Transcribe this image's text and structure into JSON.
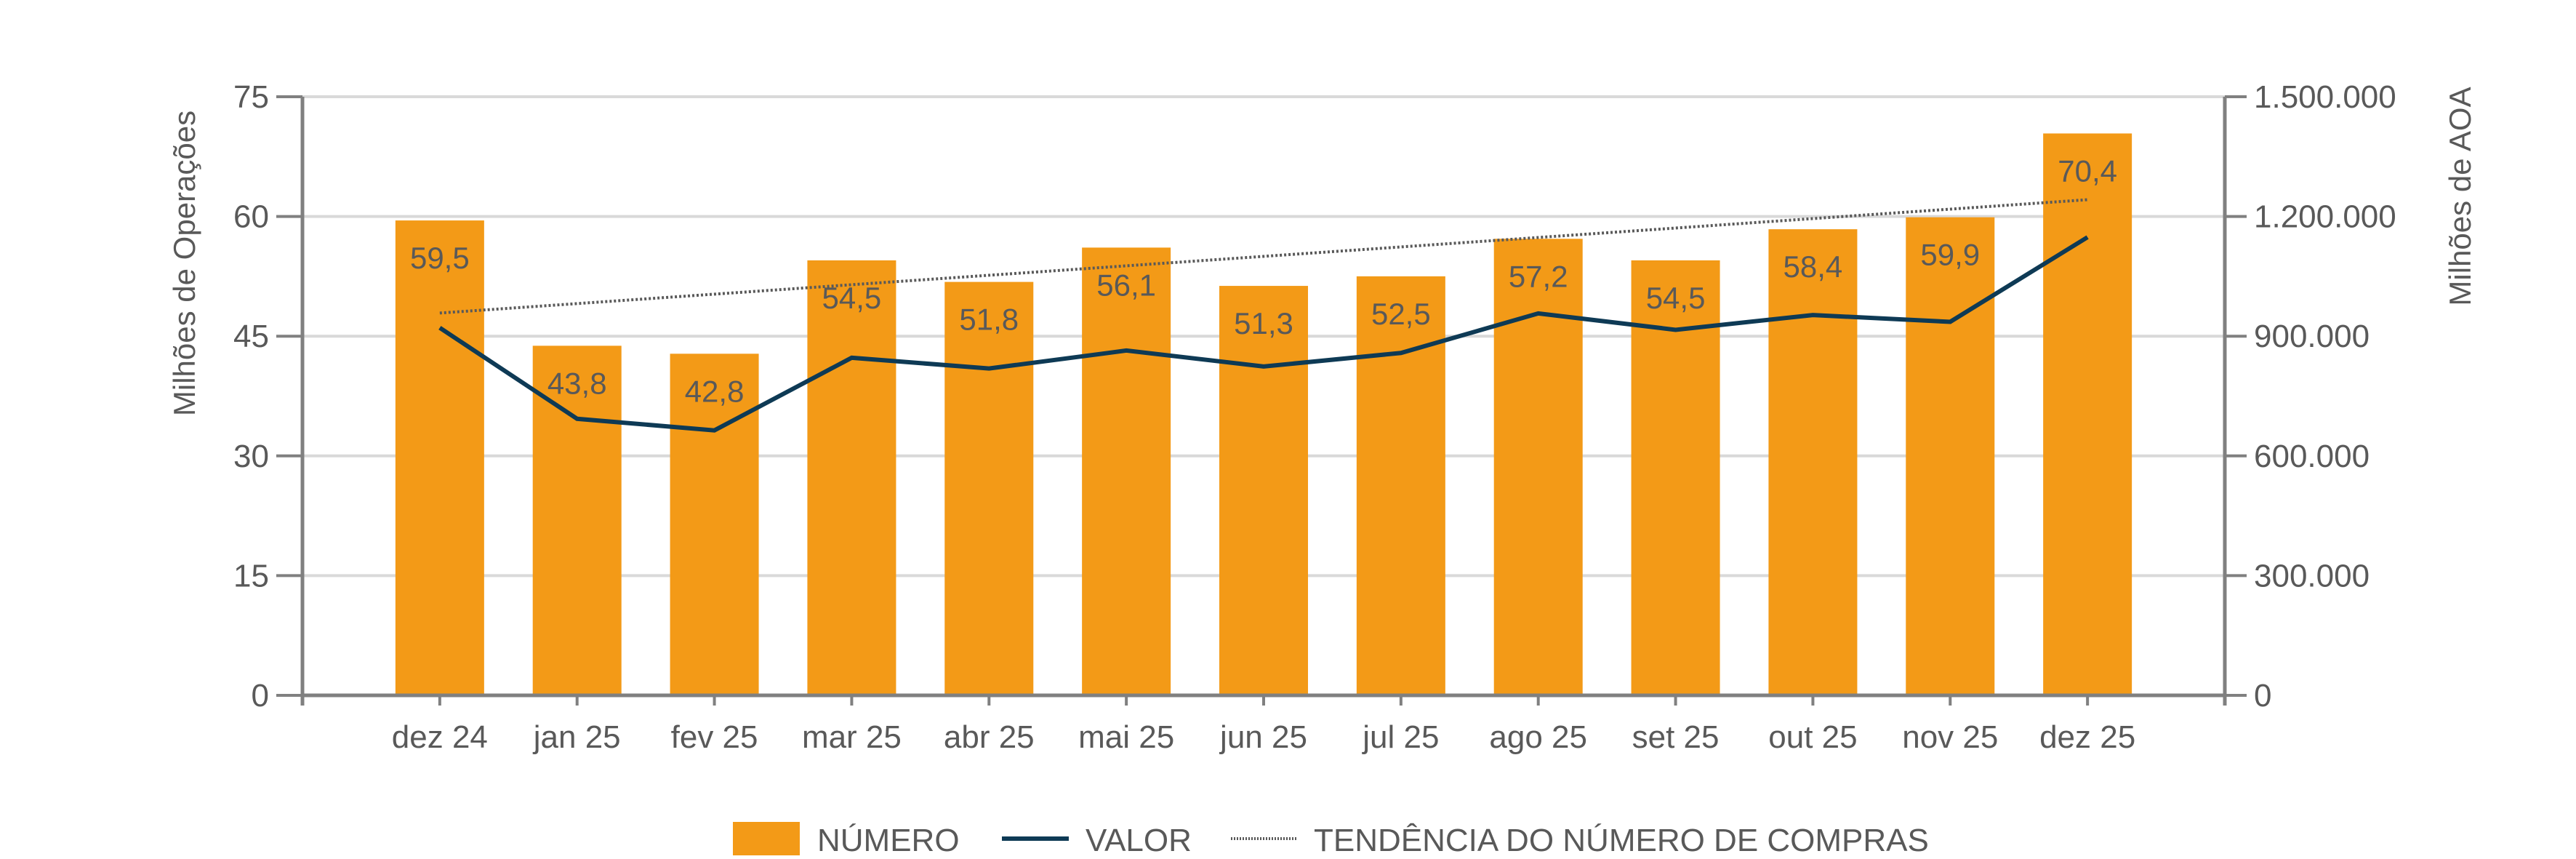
{
  "chart_data": {
    "type": "bar",
    "title": "",
    "categories": [
      "dez 24",
      "jan 25",
      "fev 25",
      "mar 25",
      "abr 25",
      "mai 25",
      "jun 25",
      "jul 25",
      "ago 25",
      "set 25",
      "out 25",
      "nov 25",
      "dez 25"
    ],
    "series": [
      {
        "name": "NÚMERO",
        "type": "bar",
        "axis": "left",
        "color": "#F39A17",
        "values": [
          59.5,
          43.8,
          42.8,
          54.5,
          51.8,
          56.1,
          51.3,
          52.5,
          57.2,
          54.5,
          58.4,
          59.9,
          70.4
        ],
        "labels": [
          "59,5",
          "43,8",
          "42,8",
          "54,5",
          "51,8",
          "56,1",
          "51,3",
          "52,5",
          "57,2",
          "54,5",
          "58,4",
          "59,9",
          "70,4"
        ]
      },
      {
        "name": "VALOR",
        "type": "line",
        "axis": "right",
        "color": "#0E3A55",
        "values": [
          921000,
          693000,
          664000,
          846000,
          819000,
          864000,
          824000,
          858000,
          957000,
          916000,
          953000,
          936000,
          1148000
        ]
      },
      {
        "name": "TENDÊNCIA DO NÚMERO DE COMPRAS",
        "type": "trendline",
        "axis": "left",
        "style": "dotted",
        "color": "#595959",
        "start_value": 47.9,
        "end_value": 62.1
      }
    ],
    "xlabel": "",
    "ylabel": "Milhões de Operações",
    "y2label": "Milhões de AOA",
    "ylim": [
      0,
      75
    ],
    "y2lim": [
      0,
      1500000
    ],
    "yticks": [
      "0",
      "15",
      "30",
      "45",
      "60",
      "75"
    ],
    "y2ticks": [
      "0",
      "300.000",
      "600.000",
      "900.000",
      "1.200.000",
      "1.500.000"
    ],
    "grid": true,
    "legend_position": "bottom"
  },
  "legend": {
    "items": [
      {
        "label": "NÚMERO",
        "symbol": "bar-swatch"
      },
      {
        "label": "VALOR",
        "symbol": "solid-line"
      },
      {
        "label": "TENDÊNCIA DO NÚMERO DE COMPRAS",
        "symbol": "dotted-line"
      }
    ]
  },
  "colors": {
    "bar": "#F39A17",
    "line": "#0E3A55",
    "trend": "#595959",
    "grid": "#D9D9D9",
    "axis": "#808080",
    "text": "#595959"
  }
}
